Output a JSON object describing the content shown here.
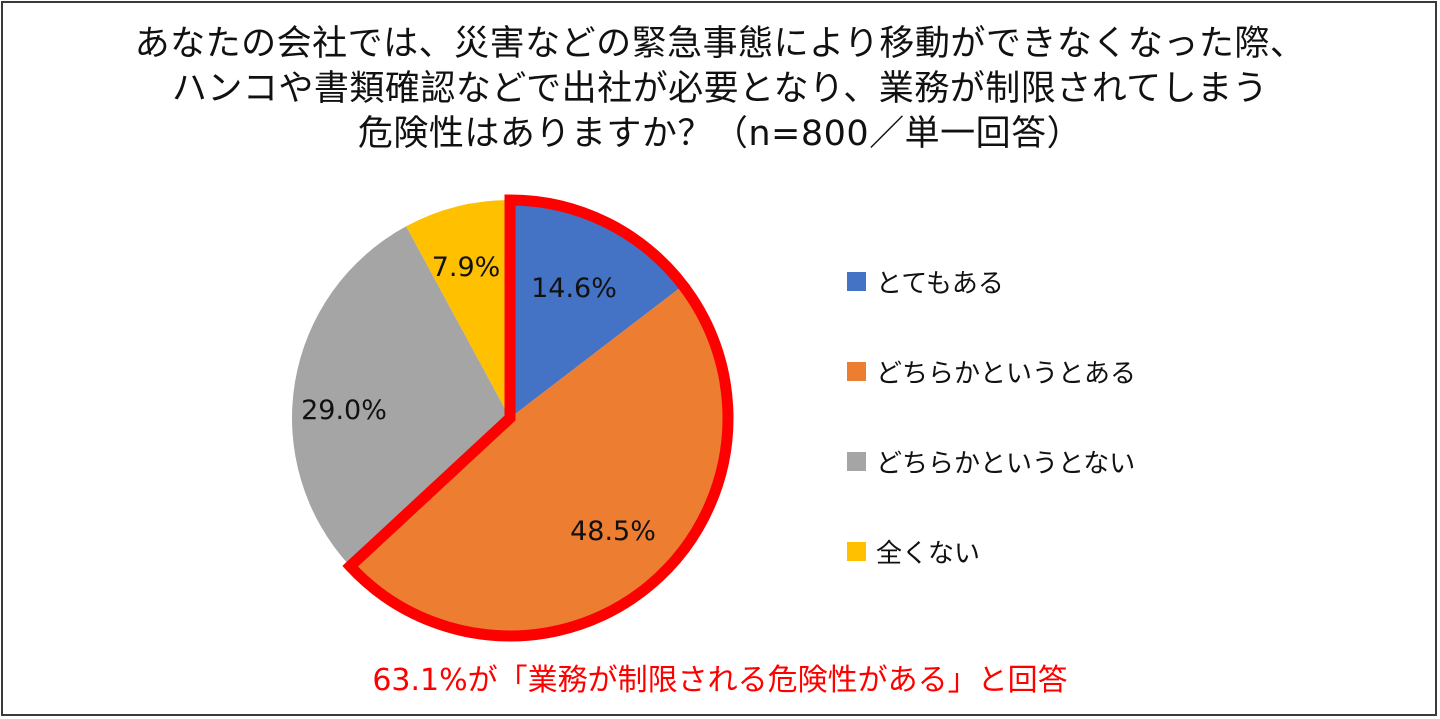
{
  "title": {
    "line1": "あなたの会社では、災害などの緊急事態により移動ができなくなった際、",
    "line2": "ハンコや書類確認などで出社が必要となり、業務が制限されてしまう",
    "line3": "危険性はありますか？（n=800／単一回答）"
  },
  "legend": {
    "items": [
      {
        "label": "とてもある",
        "color": "#4472C4"
      },
      {
        "label": "どちらかというとある",
        "color": "#ED7D31"
      },
      {
        "label": "どちらかというとない",
        "color": "#A5A5A5"
      },
      {
        "label": "全くない",
        "color": "#FFC000"
      }
    ]
  },
  "labels": {
    "s0": "14.6%",
    "s1": "48.5%",
    "s2": "29.0%",
    "s3": "7.9%"
  },
  "highlight": {
    "color": "#FF0000",
    "note": "63.1%が「業務が制限される危険性がある」と回答"
  },
  "chart_data": {
    "type": "pie",
    "title": "あなたの会社では、災害などの緊急事態により移動ができなくなった際、ハンコや書類確認などで出社が必要となり、業務が制限されてしまう危険性はありますか？（n=800／単一回答）",
    "categories": [
      "とてもある",
      "どちらかというとある",
      "どちらかというとない",
      "全くない"
    ],
    "values": [
      14.6,
      48.5,
      29.0,
      7.9
    ],
    "unit": "%",
    "colors": [
      "#4472C4",
      "#ED7D31",
      "#A5A5A5",
      "#FFC000"
    ],
    "start_angle": "12 o'clock, clockwise",
    "legend_position": "right",
    "highlighted_categories": [
      "とてもある",
      "どちらかというとある"
    ],
    "highlighted_total": 63.1,
    "annotation": "63.1%が「業務が制限される危険性がある」と回答",
    "sample_size": 800
  }
}
